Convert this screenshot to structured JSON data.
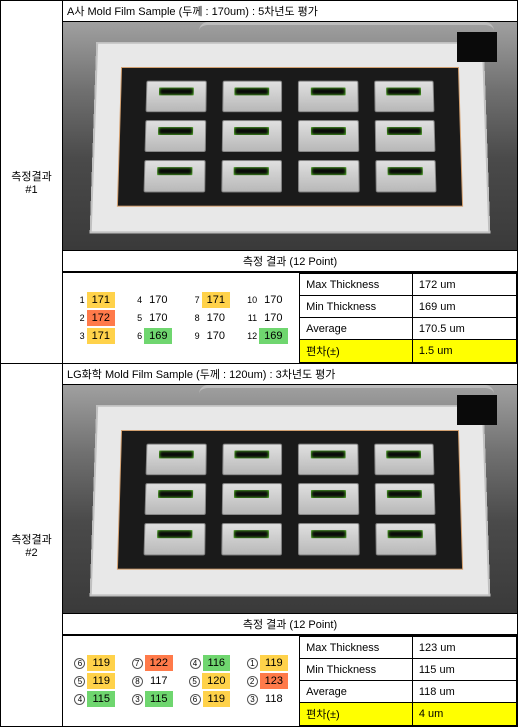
{
  "sections": [
    {
      "label_line1": "측정결과",
      "label_line2": "#1",
      "header": "A사 Mold Film Sample (두께 : 170um) : 5차년도 평가",
      "caption": "측정 결과 (12 Point)",
      "heatmap": {
        "circled_index": false,
        "cells": [
          {
            "idx": "1",
            "val": "171",
            "bg": "#ffd24a"
          },
          {
            "idx": "4",
            "val": "170",
            "bg": "#ffffff"
          },
          {
            "idx": "7",
            "val": "171",
            "bg": "#ffd24a"
          },
          {
            "idx": "10",
            "val": "170",
            "bg": "#ffffff"
          },
          {
            "idx": "2",
            "val": "172",
            "bg": "#ff7a4a"
          },
          {
            "idx": "5",
            "val": "170",
            "bg": "#ffffff"
          },
          {
            "idx": "8",
            "val": "170",
            "bg": "#ffffff"
          },
          {
            "idx": "11",
            "val": "170",
            "bg": "#ffffff"
          },
          {
            "idx": "3",
            "val": "171",
            "bg": "#ffd24a"
          },
          {
            "idx": "6",
            "val": "169",
            "bg": "#6fd66f"
          },
          {
            "idx": "9",
            "val": "170",
            "bg": "#ffffff"
          },
          {
            "idx": "12",
            "val": "169",
            "bg": "#6fd66f"
          }
        ]
      },
      "stats": [
        {
          "label": "Max Thickness",
          "value": "172 um",
          "highlight": false
        },
        {
          "label": "Min Thickness",
          "value": "169 um",
          "highlight": false
        },
        {
          "label": "Average",
          "value": "170.5 um",
          "highlight": false
        },
        {
          "label": "편차(±)",
          "value": "1.5 um",
          "highlight": true
        }
      ]
    },
    {
      "label_line1": "측정결과",
      "label_line2": "#2",
      "header": "LG화학 Mold Film Sample (두께 : 120um) : 3차년도 평가",
      "caption": "측정 결과 (12 Point)",
      "heatmap": {
        "circled_index": true,
        "cells": [
          {
            "idx": "6",
            "val": "119",
            "bg": "#ffd24a"
          },
          {
            "idx": "7",
            "val": "122",
            "bg": "#ff7a4a"
          },
          {
            "idx": "4",
            "val": "116",
            "bg": "#6fd66f"
          },
          {
            "idx": "1",
            "val": "119",
            "bg": "#ffd24a"
          },
          {
            "idx": "5",
            "val": "119",
            "bg": "#ffd24a"
          },
          {
            "idx": "8",
            "val": "117",
            "bg": "#ffffff"
          },
          {
            "idx": "5",
            "val": "120",
            "bg": "#ffd24a"
          },
          {
            "idx": "2",
            "val": "123",
            "bg": "#ff7a4a"
          },
          {
            "idx": "4",
            "val": "115",
            "bg": "#6fd66f"
          },
          {
            "idx": "3",
            "val": "115",
            "bg": "#6fd66f"
          },
          {
            "idx": "6",
            "val": "119",
            "bg": "#ffd24a"
          },
          {
            "idx": "3",
            "val": "118",
            "bg": "#ffffff"
          }
        ]
      },
      "stats": [
        {
          "label": "Max Thickness",
          "value": "123 um",
          "highlight": false
        },
        {
          "label": "Min Thickness",
          "value": "115 um",
          "highlight": false
        },
        {
          "label": "Average",
          "value": "118 um",
          "highlight": false
        },
        {
          "label": "편차(±)",
          "value": "4 um",
          "highlight": true
        }
      ]
    }
  ]
}
